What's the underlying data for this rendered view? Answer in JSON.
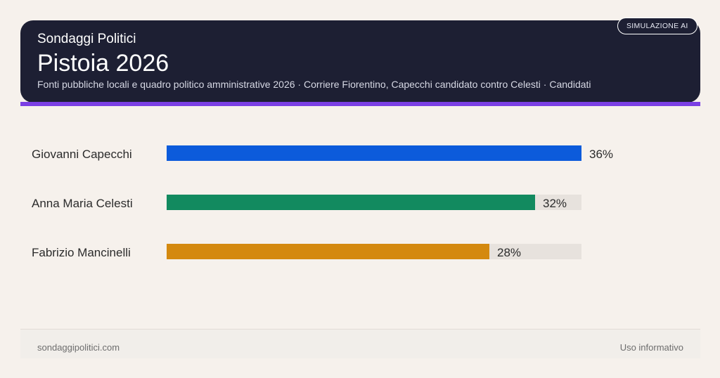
{
  "header": {
    "brand": "Sondaggi Politici",
    "title": "Pistoia 2026",
    "sources": "Fonti pubbliche locali e quadro politico amministrative 2026 · Corriere Fiorentino, Capecchi candidato contro Celesti · Candidati",
    "badge": "SIMULAZIONE AI"
  },
  "colors": {
    "header_bg": "#1d1f33",
    "accent": "#7b3fe4",
    "background": "#f6f1ec"
  },
  "chart_data": {
    "type": "bar",
    "orientation": "horizontal",
    "categories": [
      "Giovanni Capecchi",
      "Anna Maria Celesti",
      "Fabrizio Mancinelli"
    ],
    "values": [
      36,
      32,
      28
    ],
    "value_labels": [
      "36%",
      "32%",
      "28%"
    ],
    "colors": [
      "#0c5bdb",
      "#128a5f",
      "#d4890f"
    ],
    "xlim": [
      0,
      36
    ],
    "grid": false
  },
  "footer": {
    "site": "sondaggipolitici.com",
    "note": "Uso informativo"
  }
}
